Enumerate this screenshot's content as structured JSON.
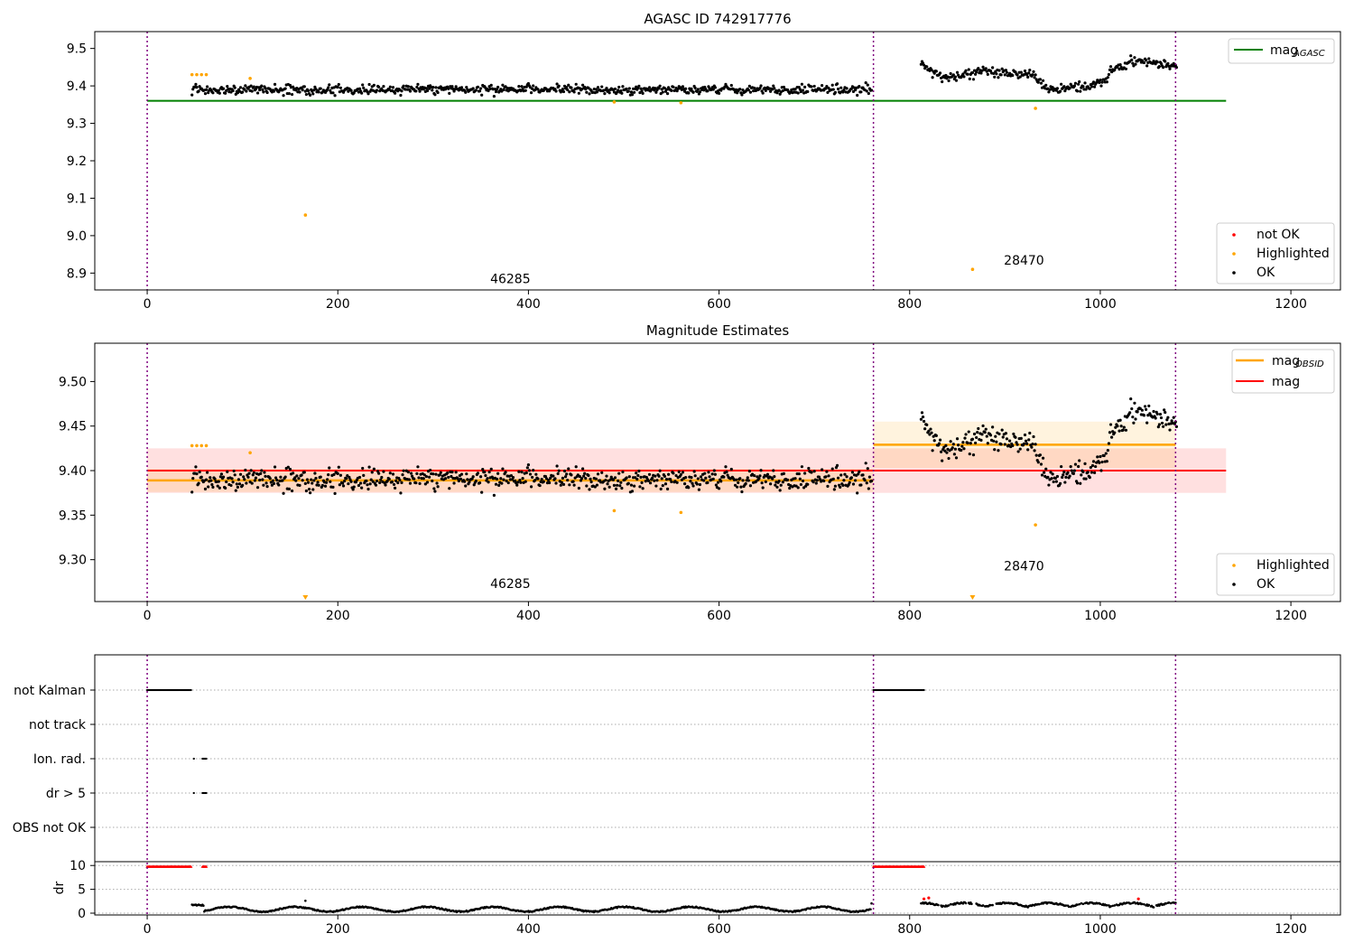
{
  "chart_data": [
    {
      "type": "scatter",
      "title": "AGASC ID 742917776",
      "xlabel": "",
      "ylabel": "",
      "xlim": [
        -55,
        1252
      ],
      "ylim": [
        8.855,
        9.545
      ],
      "xticks": [
        0,
        200,
        400,
        600,
        800,
        1000,
        1200
      ],
      "yticks": [
        8.9,
        9.0,
        9.1,
        9.2,
        9.3,
        9.4,
        9.5
      ],
      "ytick_labels": [
        "8.9",
        "9.0",
        "9.1",
        "9.2",
        "9.3",
        "9.4",
        "9.5"
      ],
      "obs_boundaries": [
        0,
        762,
        1079
      ],
      "obs_labels": [
        {
          "text": "46285",
          "x": 381,
          "y": 8.873
        },
        {
          "text": "28470",
          "x": 920,
          "y": 8.922
        }
      ],
      "legend_upper": {
        "position": "upper right",
        "entries": [
          {
            "name": "mag",
            "sub": "AGASC",
            "color": "#008000"
          }
        ]
      },
      "legend_lower": {
        "position": "lower right",
        "entries": [
          {
            "name": "not OK",
            "color": "#ff0000"
          },
          {
            "name": "Highlighted",
            "color": "#ffa500"
          },
          {
            "name": "OK",
            "color": "#000000"
          }
        ]
      },
      "reference_line": {
        "name": "mag_AGASC",
        "y": 9.36,
        "x0": 0,
        "x1": 1132,
        "color": "#008000"
      },
      "ok_segments": [
        {
          "name": "OK",
          "x0": 47,
          "x1": 760,
          "center": 9.39,
          "spread": 0.012
        },
        {
          "name": "OK",
          "x0": 812,
          "x1": 1080,
          "knots": [
            [
              812,
              9.46
            ],
            [
              835,
              9.42
            ],
            [
              880,
              9.44
            ],
            [
              930,
              9.43
            ],
            [
              945,
              9.39
            ],
            [
              985,
              9.4
            ],
            [
              1005,
              9.41
            ],
            [
              1010,
              9.44
            ],
            [
              1040,
              9.47
            ],
            [
              1080,
              9.45
            ]
          ],
          "spread": 0.012
        }
      ],
      "highlighted": [
        [
          47,
          9.43
        ],
        [
          52,
          9.43
        ],
        [
          57,
          9.43
        ],
        [
          62,
          9.43
        ],
        [
          108,
          9.42
        ],
        [
          166,
          9.055
        ],
        [
          490,
          9.357
        ],
        [
          560,
          9.355
        ],
        [
          866,
          8.91
        ],
        [
          932,
          9.34
        ]
      ]
    },
    {
      "type": "scatter",
      "title": "Magnitude Estimates",
      "xlabel": "",
      "ylabel": "",
      "xlim": [
        -55,
        1252
      ],
      "ylim": [
        9.253,
        9.543
      ],
      "xticks": [
        0,
        200,
        400,
        600,
        800,
        1000,
        1200
      ],
      "yticks": [
        9.3,
        9.35,
        9.4,
        9.45,
        9.5
      ],
      "ytick_labels": [
        "9.30",
        "9.35",
        "9.40",
        "9.45",
        "9.50"
      ],
      "obs_boundaries": [
        0,
        762,
        1079
      ],
      "obs_labels": [
        {
          "text": "46285",
          "x": 381,
          "y": 9.268
        },
        {
          "text": "28470",
          "x": 920,
          "y": 9.288
        }
      ],
      "legend_upper": {
        "position": "upper right",
        "entries": [
          {
            "name": "mag",
            "sub": "OBSID",
            "color": "#ffa500"
          },
          {
            "name": "mag",
            "sub": "",
            "color": "#ff0000"
          }
        ]
      },
      "legend_lower": {
        "position": "lower right",
        "entries": [
          {
            "name": "Highlighted",
            "color": "#ffa500"
          },
          {
            "name": "OK",
            "color": "#000000"
          }
        ]
      },
      "mag_line": {
        "y": 9.4,
        "band": [
          9.375,
          9.425
        ],
        "x0": 0,
        "x1": 1132,
        "color": "#ff0000"
      },
      "obsid_mags": [
        {
          "x0": 0,
          "x1": 762,
          "y": 9.389,
          "band": [
            9.376,
            9.402
          ]
        },
        {
          "x0": 762,
          "x1": 1079,
          "y": 9.429,
          "band": [
            9.403,
            9.455
          ]
        }
      ],
      "ok_segments": [
        {
          "name": "OK",
          "x0": 47,
          "x1": 760,
          "center": 9.39,
          "spread": 0.012
        },
        {
          "name": "OK",
          "x0": 812,
          "x1": 1080,
          "knots": [
            [
              812,
              9.46
            ],
            [
              835,
              9.42
            ],
            [
              880,
              9.44
            ],
            [
              930,
              9.43
            ],
            [
              945,
              9.39
            ],
            [
              985,
              9.4
            ],
            [
              1005,
              9.41
            ],
            [
              1010,
              9.44
            ],
            [
              1040,
              9.47
            ],
            [
              1080,
              9.45
            ]
          ],
          "spread": 0.012
        }
      ],
      "highlighted": [
        [
          47,
          9.428
        ],
        [
          52,
          9.428
        ],
        [
          57,
          9.428
        ],
        [
          62,
          9.428
        ],
        [
          108,
          9.42
        ],
        [
          490,
          9.355
        ],
        [
          560,
          9.353
        ],
        [
          932,
          9.339
        ]
      ],
      "offscale_markers": [
        166,
        866
      ]
    },
    {
      "type": "scatter",
      "title": "",
      "xlabel": "",
      "ylabel": "",
      "xlim": [
        -55,
        1252
      ],
      "xticks": [
        0,
        200,
        400,
        600,
        800,
        1000,
        1200
      ],
      "obs_boundaries": [
        0,
        762,
        1079
      ],
      "flag_rows": [
        "not Kalman",
        "not track",
        "Ion. rad.",
        "dr > 5",
        "OBS not OK"
      ],
      "flag_ranges": {
        "not Kalman": [
          [
            0,
            46
          ],
          [
            762,
            815
          ]
        ],
        "not track": [],
        "Ion. rad.": [
          [
            49,
            49
          ],
          [
            58,
            62
          ]
        ],
        "dr > 5": [
          [
            49,
            49
          ],
          [
            58,
            62
          ]
        ],
        "OBS not OK": []
      },
      "dr_panel": {
        "ylabel": "dr",
        "ylim": [
          0,
          10.8
        ],
        "yticks": [
          0,
          5,
          10
        ],
        "ytick_labels": [
          "0",
          "5",
          "10"
        ],
        "clipped": [
          [
            0,
            46
          ],
          [
            58,
            62
          ],
          [
            762,
            815
          ]
        ],
        "red_points": [
          [
            815,
            3.0
          ],
          [
            820,
            3.2
          ],
          [
            1040,
            3.0
          ]
        ],
        "black_range": [
          47,
          1080
        ],
        "gaps": [
          [
            760,
            812
          ]
        ]
      }
    }
  ]
}
